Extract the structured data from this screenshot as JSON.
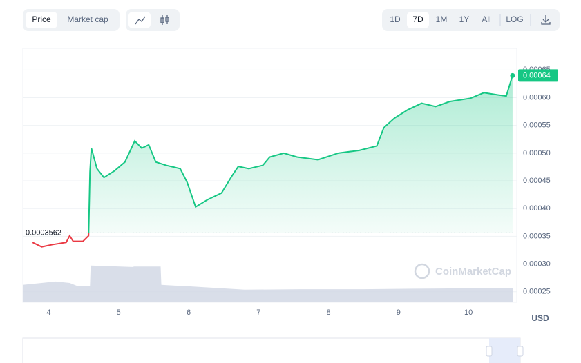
{
  "controls": {
    "modes": [
      "Price",
      "Market cap"
    ],
    "ranges": [
      "1D",
      "7D",
      "1M",
      "1Y",
      "All"
    ],
    "log": "LOG",
    "currency": "USD"
  },
  "watermark": "CoinMarketCap",
  "chart_data": {
    "type": "line",
    "x": [
      3.77,
      3.9,
      4.05,
      4.25,
      4.3,
      4.35,
      4.49,
      4.57,
      4.59,
      4.61,
      4.69,
      4.79,
      4.94,
      5.09,
      5.23,
      5.33,
      5.43,
      5.53,
      5.68,
      5.88,
      5.98,
      6.1,
      6.27,
      6.47,
      6.62,
      6.71,
      6.86,
      7.06,
      7.16,
      7.36,
      7.55,
      7.85,
      8.14,
      8.44,
      8.69,
      8.79,
      8.94,
      9.13,
      9.33,
      9.53,
      9.73,
      10.03,
      10.22,
      10.42,
      10.54,
      10.63
    ],
    "values": [
      0.000339,
      0.000331,
      0.000335,
      0.000339,
      0.000351,
      0.000341,
      0.000341,
      0.000351,
      0.000466,
      0.000509,
      0.000472,
      0.000456,
      0.000468,
      0.000484,
      0.000522,
      0.000509,
      0.000515,
      0.000484,
      0.000478,
      0.000472,
      0.000447,
      0.000403,
      0.000416,
      0.000428,
      0.000459,
      0.000476,
      0.000472,
      0.000478,
      0.000493,
      0.0005,
      0.000493,
      0.000488,
      0.0005,
      0.000505,
      0.000513,
      0.000546,
      0.000563,
      0.000578,
      0.00059,
      0.000584,
      0.000593,
      0.000599,
      0.000609,
      0.000605,
      0.000603,
      0.00064
    ],
    "above_color": "#16c784",
    "below_color": "#ea3943",
    "reference": {
      "value": 0.0003562,
      "label": "0.0003562"
    },
    "current": {
      "value": 0.00064,
      "label": "0.00064"
    },
    "volume": {
      "x": [
        3.63,
        3.9,
        4.1,
        4.3,
        4.42,
        4.59,
        4.6,
        5.2,
        5.22,
        5.6,
        5.61,
        6.0,
        6.8,
        7.6,
        8.5,
        9.2,
        10.0,
        10.64
      ],
      "values": [
        36,
        40,
        43,
        40,
        33,
        33,
        76,
        73,
        74,
        74,
        36,
        33,
        26,
        27,
        27,
        28,
        29,
        30
      ],
      "vlim": [
        0,
        100
      ],
      "color": "#cfd6e4"
    },
    "xlim": [
      3.63,
      10.69
    ],
    "xticks": [
      4,
      5,
      6,
      7,
      8,
      9,
      10
    ],
    "ylim": [
      0.000231,
      0.000689
    ],
    "yticks": [
      {
        "value": 0.00025,
        "label": "0.00025"
      },
      {
        "value": 0.0003,
        "label": "0.00030"
      },
      {
        "value": 0.00035,
        "label": "0.00035"
      },
      {
        "value": 0.0004,
        "label": "0.00040"
      },
      {
        "value": 0.00045,
        "label": "0.00045"
      },
      {
        "value": 0.0005,
        "label": "0.00050"
      },
      {
        "value": 0.00055,
        "label": "0.00055"
      },
      {
        "value": 0.0006,
        "label": "0.00060"
      },
      {
        "value": 0.00065,
        "label": "0.00065"
      }
    ],
    "grid": true
  }
}
